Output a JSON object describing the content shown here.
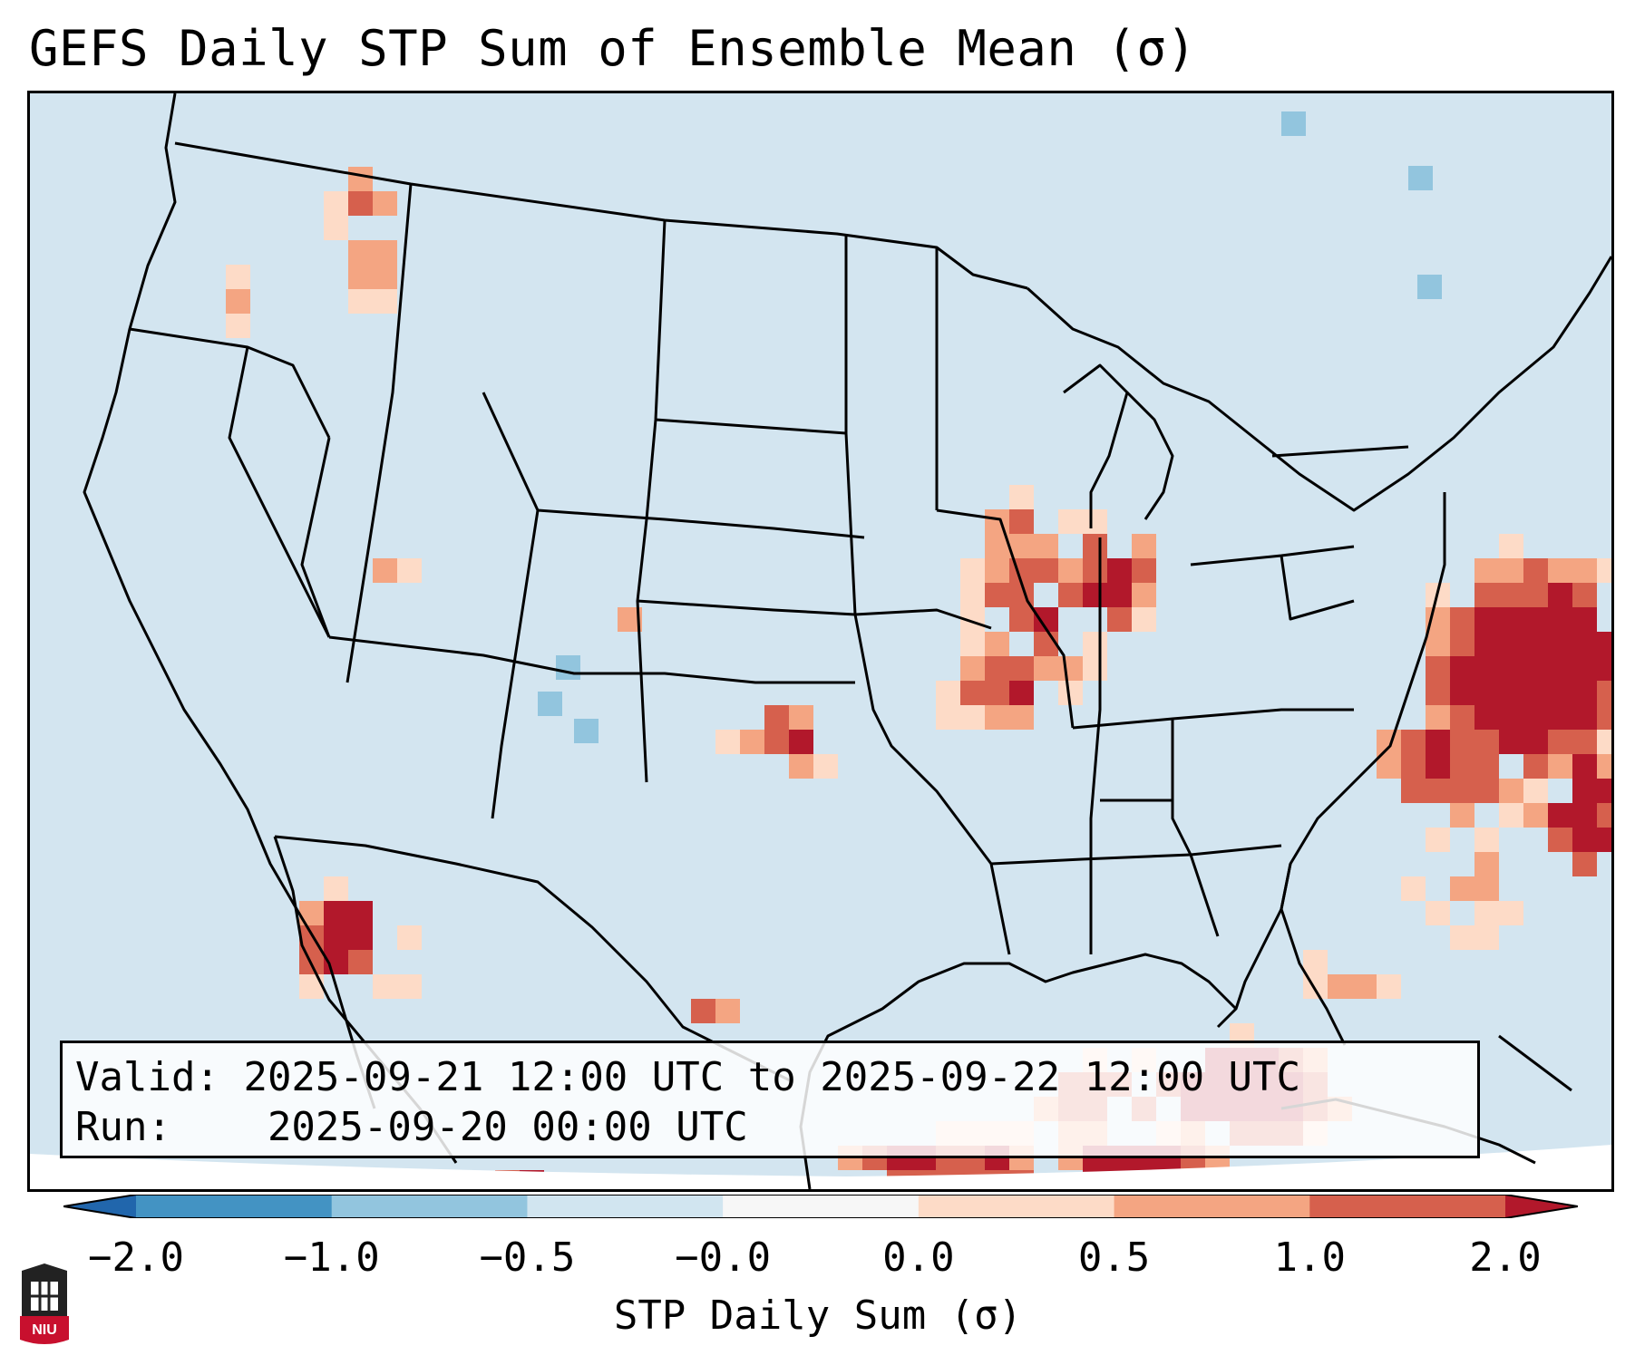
{
  "title": "GEFS Daily STP Sum of Ensemble Mean (σ)",
  "info": {
    "valid_label": "Valid:",
    "valid_value": "2025-09-21 12:00 UTC to 2025-09-22 12:00 UTC",
    "run_label": "Run:",
    "run_value": "2025-09-20 00:00 UTC"
  },
  "colorbar": {
    "label": "STP Daily Sum (σ)",
    "ticks": [
      "−2.0",
      "−1.0",
      "−0.5",
      "−0.0",
      "0.0",
      "0.5",
      "1.0",
      "2.0"
    ],
    "bin_colors": [
      "#4393c3",
      "#92c5de",
      "#d1e5f0",
      "#f7f7f7",
      "#fddbc7",
      "#f4a582",
      "#d6604d"
    ],
    "under_color": "#2166ac",
    "over_color": "#b2182b",
    "extend": "both"
  },
  "map": {
    "projection": "Lambert Conformal CONUS",
    "ocean_color": "#d3e5f0",
    "hotspots": [
      "Pacific Northwest",
      "Utah",
      "Colorado",
      "Kansas/Oklahoma",
      "Missouri/Illinois",
      "Wisconsin/Michigan",
      "Gulf of California",
      "West Texas",
      "Gulf of Mexico",
      "Florida",
      "Western Atlantic"
    ]
  },
  "logo": {
    "text": "NIU",
    "name": "Northern Illinois University"
  }
}
